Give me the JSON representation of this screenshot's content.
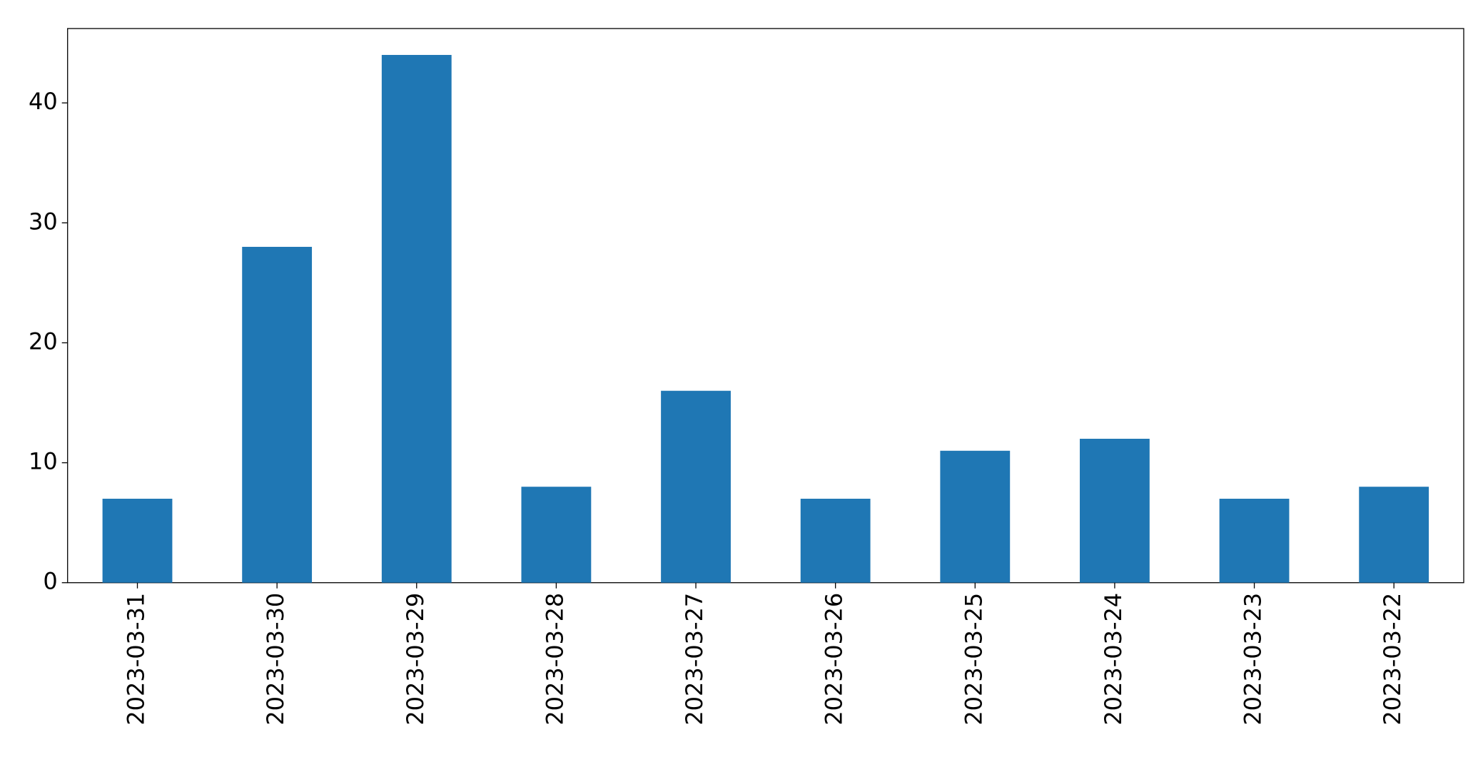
{
  "chart_data": {
    "type": "bar",
    "categories": [
      "2023-03-31",
      "2023-03-30",
      "2023-03-29",
      "2023-03-28",
      "2023-03-27",
      "2023-03-26",
      "2023-03-25",
      "2023-03-24",
      "2023-03-23",
      "2023-03-22"
    ],
    "values": [
      7,
      28,
      44,
      8,
      16,
      7,
      11,
      12,
      7,
      8
    ],
    "color": "#1f77b4",
    "ylim": [
      0,
      46.2
    ],
    "yticks": [
      0,
      10,
      20,
      30,
      40
    ],
    "grid": false
  }
}
